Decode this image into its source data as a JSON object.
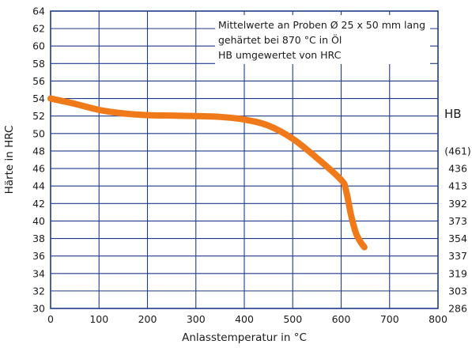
{
  "chart_data": {
    "type": "line",
    "xlabel": "Anlasstemperatur in °C",
    "ylabel": "Härte in HRC",
    "xlim": [
      0,
      800
    ],
    "ylim": [
      30,
      64
    ],
    "x_ticks": [
      0,
      100,
      200,
      300,
      400,
      500,
      600,
      700,
      800
    ],
    "y_ticks": [
      30,
      32,
      34,
      36,
      38,
      40,
      42,
      44,
      46,
      48,
      50,
      52,
      54,
      56,
      58,
      60,
      62,
      64
    ],
    "grid": true,
    "annotation_lines": [
      "Mittelwerte an Proben Ø 25 x 50 mm lang",
      "gehärtet bei 870 °C in Öl",
      "HB umgewertet von HRC"
    ],
    "secondary_axis": {
      "title": "HB",
      "labels": [
        {
          "hrc": 48,
          "label": "(461)"
        },
        {
          "hrc": 46,
          "label": "436"
        },
        {
          "hrc": 44,
          "label": "413"
        },
        {
          "hrc": 42,
          "label": "392"
        },
        {
          "hrc": 40,
          "label": "373"
        },
        {
          "hrc": 38,
          "label": "354"
        },
        {
          "hrc": 36,
          "label": "337"
        },
        {
          "hrc": 34,
          "label": "319"
        },
        {
          "hrc": 32,
          "label": "303"
        },
        {
          "hrc": 30,
          "label": "286"
        }
      ]
    },
    "series": [
      {
        "color": "#f07a1a",
        "x": [
          0,
          50,
          100,
          150,
          200,
          250,
          300,
          350,
          400,
          450,
          500,
          550,
          600,
          610,
          620,
          630,
          640,
          648
        ],
        "y": [
          54.0,
          53.4,
          52.7,
          52.3,
          52.1,
          52.05,
          52.0,
          51.9,
          51.6,
          50.9,
          49.4,
          47.2,
          44.7,
          43.5,
          40.8,
          38.7,
          37.6,
          37.0
        ]
      }
    ]
  }
}
